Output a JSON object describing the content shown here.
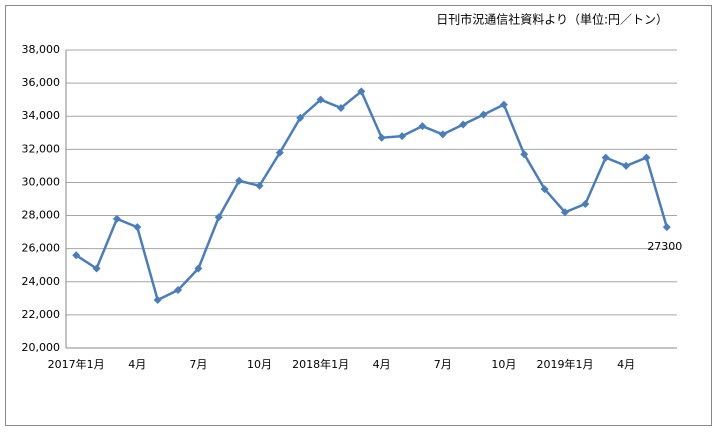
{
  "chart_data": {
    "type": "line",
    "title": "日刊市況通信社資料より（単位:円／トン）",
    "categories": [
      "2017年1月",
      null,
      null,
      "4月",
      null,
      null,
      "7月",
      null,
      null,
      "10月",
      null,
      null,
      "2018年1月",
      null,
      null,
      "4月",
      null,
      null,
      "7月",
      null,
      null,
      "10月",
      null,
      null,
      "2019年1月",
      null,
      null,
      "4月",
      null,
      null
    ],
    "series": [
      {
        "color": "#4a7ebb",
        "values": [
          25600,
          24800,
          27800,
          27300,
          22900,
          23500,
          24800,
          27900,
          30100,
          29800,
          31800,
          33900,
          35000,
          34500,
          35500,
          32700,
          32800,
          33400,
          32900,
          33500,
          34100,
          34700,
          31700,
          29600,
          28200,
          28700,
          31500,
          31000,
          31500,
          27300
        ],
        "value_labels": [
          null,
          null,
          null,
          null,
          null,
          null,
          null,
          null,
          null,
          null,
          null,
          null,
          null,
          null,
          null,
          null,
          null,
          null,
          null,
          null,
          null,
          null,
          null,
          null,
          null,
          null,
          null,
          null,
          null,
          "27300"
        ]
      }
    ],
    "ylim": [
      20000,
      38000
    ],
    "yticks": [
      {
        "value": 20000,
        "label": "20,000"
      },
      {
        "value": 22000,
        "label": "22,000"
      },
      {
        "value": 24000,
        "label": "24,000"
      },
      {
        "value": 26000,
        "label": "26,000"
      },
      {
        "value": 28000,
        "label": "28,000"
      },
      {
        "value": 30000,
        "label": "30,000"
      },
      {
        "value": 32000,
        "label": "32,000"
      },
      {
        "value": 34000,
        "label": "34,000"
      },
      {
        "value": 36000,
        "label": "36,000"
      },
      {
        "value": 38000,
        "label": "38,000"
      }
    ],
    "grid": true
  }
}
